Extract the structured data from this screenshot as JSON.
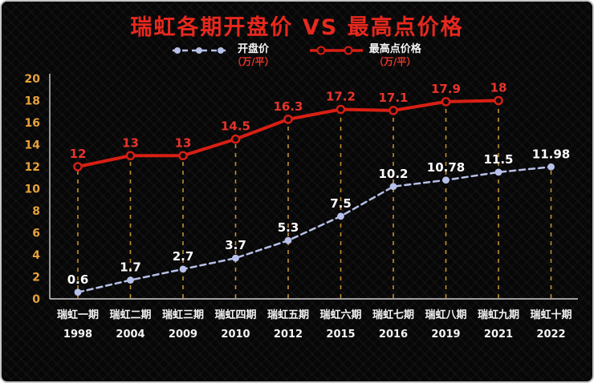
{
  "chart": {
    "title": "瑞虹各期开盘价 VS 最高点价格"
  },
  "chart_data": {
    "type": "line",
    "title": "瑞虹各期开盘价 VS 最高点价格",
    "categories": [
      {
        "name": "瑞虹一期",
        "year": "1998"
      },
      {
        "name": "瑞虹二期",
        "year": "2004"
      },
      {
        "name": "瑞虹三期",
        "year": "2009"
      },
      {
        "name": "瑞虹四期",
        "year": "2010"
      },
      {
        "name": "瑞虹五期",
        "year": "2012"
      },
      {
        "name": "瑞虹六期",
        "year": "2015"
      },
      {
        "name": "瑞虹七期",
        "year": "2016"
      },
      {
        "name": "瑞虹八期",
        "year": "2019"
      },
      {
        "name": "瑞虹九期",
        "year": "2021"
      },
      {
        "name": "瑞虹十期",
        "year": "2022"
      }
    ],
    "series": [
      {
        "name": "开盘价",
        "unit": "（万/平）",
        "color": "#b6c0e8",
        "line_style": "dashed",
        "marker": "filled-circle",
        "label_color": "#ffffff",
        "values": [
          0.6,
          1.7,
          2.7,
          3.7,
          5.3,
          7.5,
          10.2,
          10.78,
          11.5,
          11.98
        ]
      },
      {
        "name": "最高点价格",
        "unit": "（万/平）",
        "color": "#d81f14",
        "line_style": "solid",
        "marker": "dark-circle-red-ring",
        "label_color": "#e8342c",
        "values": [
          12,
          13,
          13,
          14.5,
          16.3,
          17.2,
          17.1,
          17.9,
          18,
          null
        ]
      }
    ],
    "ylim": [
      0,
      20
    ],
    "ytick_step": 2,
    "legend_position": "top",
    "grid": "vertical-dashed-guides",
    "colors": {
      "background": "#070707",
      "axis": "#cfcfcf",
      "ytick_label": "#e8a23c",
      "x_label": "#f5f5f5",
      "guide_line": "#c28f2f",
      "title": "#e8281e"
    }
  }
}
